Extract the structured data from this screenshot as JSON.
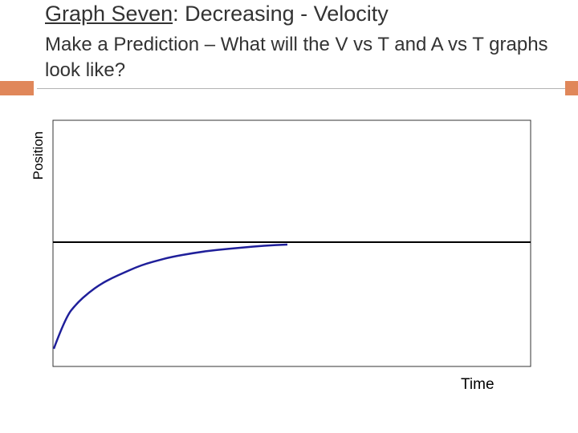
{
  "slide": {
    "title_underlined": "Graph Seven",
    "title_rest": ": Decreasing - Velocity",
    "subtitle": "Make a Prediction – What will the V vs T and A vs T graphs look like?"
  },
  "colors": {
    "accent": "#e0875a",
    "curve": "#1f1f9a",
    "axis": "#000000"
  },
  "chart_data": {
    "type": "line",
    "title": "",
    "xlabel": "Time",
    "ylabel": "Position",
    "grid": false,
    "series": [
      {
        "x": [
          0,
          0.05,
          0.1,
          0.15,
          0.2,
          0.25,
          0.3,
          0.35,
          0.4,
          0.45,
          0.5,
          0.6,
          0.7,
          0.8,
          0.9,
          1.0
        ],
        "y": [
          0,
          0.3,
          0.44,
          0.54,
          0.62,
          0.68,
          0.73,
          0.78,
          0.82,
          0.85,
          0.88,
          0.92,
          0.95,
          0.97,
          0.99,
          1.0
        ]
      }
    ]
  }
}
